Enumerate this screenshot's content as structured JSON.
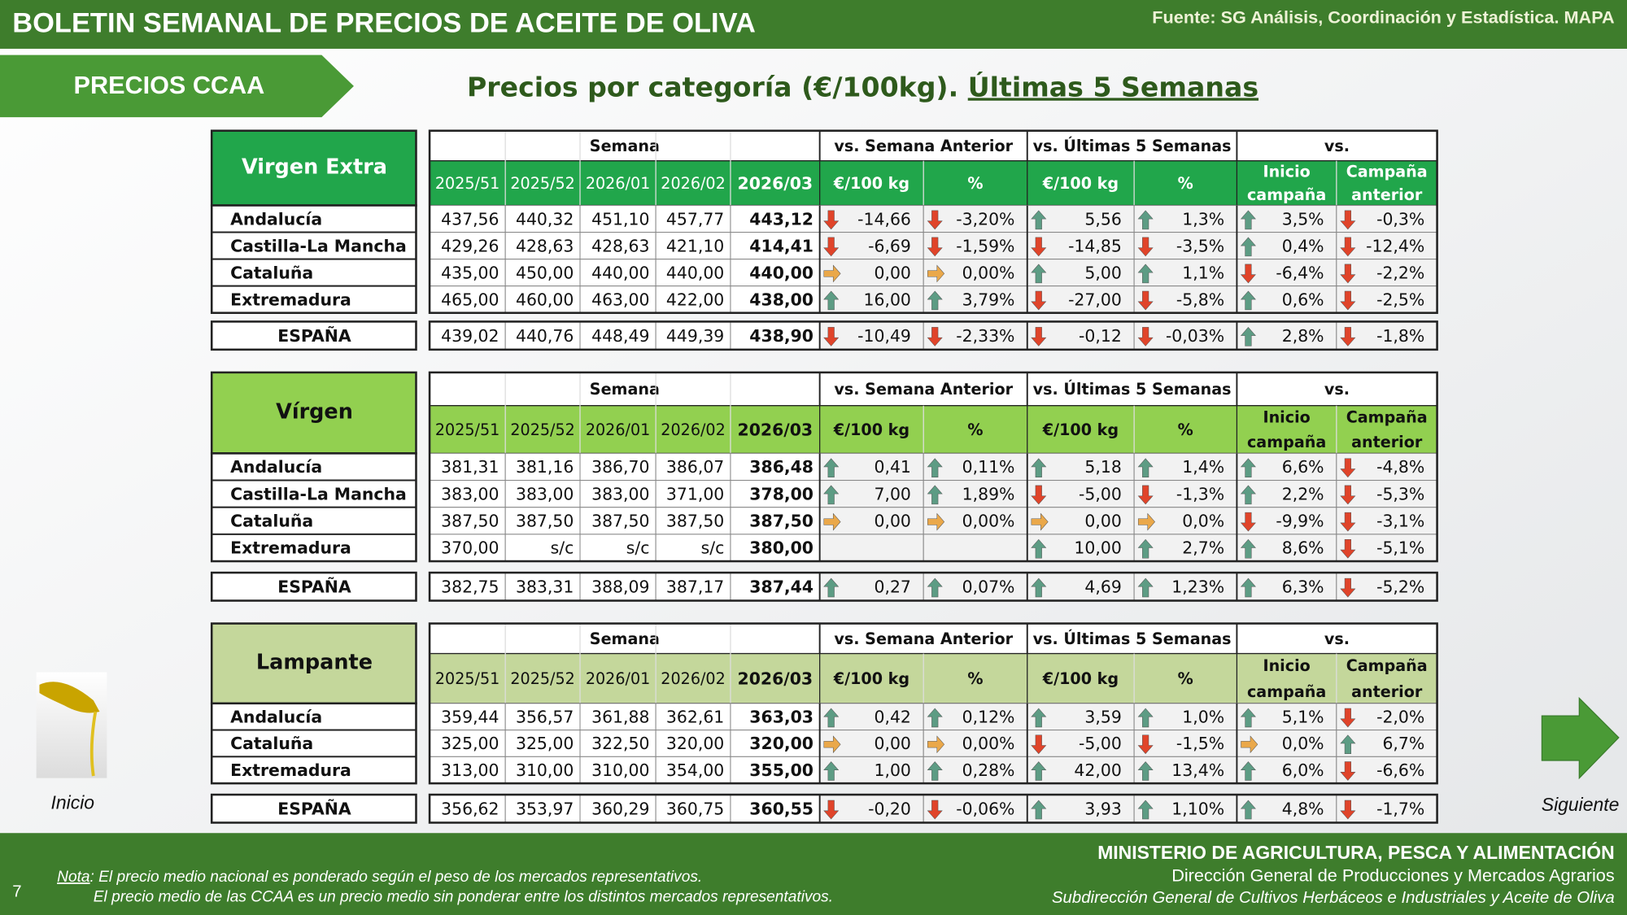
{
  "header": {
    "title": "BOLETIN SEMANAL DE PRECIOS DE ACEITE DE OLIVA",
    "source": "Fuente: SG Análisis, Coordinación y Estadística. MAPA"
  },
  "section": "PRECIOS CCAA",
  "subtitle": {
    "main": "Precios por categoría (€/100kg). ",
    "underlined": "Últimas 5 Semanas"
  },
  "tables": [
    {
      "name": "Virgen Extra",
      "groups": [
        "Semana",
        "vs. Semana Anterior",
        "vs. Últimas 5 Semanas",
        "vs."
      ],
      "columns": [
        "2025/51",
        "2025/52",
        "2026/01",
        "2026/02",
        "2026/03",
        "€/100 kg",
        "%",
        "€/100 kg",
        "%"
      ],
      "col_inicio": [
        "Inicio",
        "campaña"
      ],
      "col_campana": [
        "Campaña",
        "anterior"
      ],
      "rows": [
        {
          "region": "Andalucía",
          "cells": [
            "437,56",
            "440,32",
            "451,10",
            "457,77",
            "443,12",
            "-14,66",
            "-3,20%",
            "5,56",
            "1,3%",
            "3,5%",
            "-0,3%"
          ]
        },
        {
          "region": "Castilla-La Mancha",
          "cells": [
            "429,26",
            "428,63",
            "428,63",
            "421,10",
            "414,41",
            "-6,69",
            "-1,59%",
            "-14,85",
            "-3,5%",
            "0,4%",
            "-12,4%"
          ]
        },
        {
          "region": "Cataluña",
          "cells": [
            "435,00",
            "450,00",
            "440,00",
            "440,00",
            "440,00",
            "0,00",
            "0,00%",
            "5,00",
            "1,1%",
            "-6,4%",
            "-2,2%"
          ]
        },
        {
          "region": "Extremadura",
          "cells": [
            "465,00",
            "460,00",
            "463,00",
            "422,00",
            "438,00",
            "16,00",
            "3,79%",
            "-27,00",
            "-5,8%",
            "0,6%",
            "-2,5%"
          ]
        }
      ],
      "total": {
        "region": "ESPAÑA",
        "cells": [
          "439,02",
          "440,76",
          "448,49",
          "449,39",
          "438,90",
          "-10,49",
          "-2,33%",
          "-0,12",
          "-0,03%",
          "2,8%",
          "-1,8%"
        ]
      }
    },
    {
      "name": "Vírgen",
      "groups": [
        "Semana",
        "vs. Semana Anterior",
        "vs. Últimas 5 Semanas",
        "vs."
      ],
      "columns": [
        "2025/51",
        "2025/52",
        "2026/01",
        "2026/02",
        "2026/03",
        "€/100 kg",
        "%",
        "€/100 kg",
        "%"
      ],
      "col_inicio": [
        "Inicio",
        "campaña"
      ],
      "col_campana": [
        "Campaña",
        "anterior"
      ],
      "rows": [
        {
          "region": "Andalucía",
          "cells": [
            "381,31",
            "381,16",
            "386,70",
            "386,07",
            "386,48",
            "0,41",
            "0,11%",
            "5,18",
            "1,4%",
            "6,6%",
            "-4,8%"
          ]
        },
        {
          "region": "Castilla-La Mancha",
          "cells": [
            "383,00",
            "383,00",
            "383,00",
            "371,00",
            "378,00",
            "7,00",
            "1,89%",
            "-5,00",
            "-1,3%",
            "2,2%",
            "-5,3%"
          ]
        },
        {
          "region": "Cataluña",
          "cells": [
            "387,50",
            "387,50",
            "387,50",
            "387,50",
            "387,50",
            "0,00",
            "0,00%",
            "0,00",
            "0,0%",
            "-9,9%",
            "-3,1%"
          ]
        },
        {
          "region": "Extremadura",
          "cells": [
            "370,00",
            "s/c",
            "s/c",
            "s/c",
            "380,00",
            null,
            null,
            "10,00",
            "2,7%",
            "8,6%",
            "-5,1%"
          ]
        }
      ],
      "total": {
        "region": "ESPAÑA",
        "cells": [
          "382,75",
          "383,31",
          "388,09",
          "387,17",
          "387,44",
          "0,27",
          "0,07%",
          "4,69",
          "1,23%",
          "6,3%",
          "-5,2%"
        ]
      }
    },
    {
      "name": "Lampante",
      "groups": [
        "Semana",
        "vs. Semana Anterior",
        "vs. Últimas 5 Semanas",
        "vs."
      ],
      "columns": [
        "2025/51",
        "2025/52",
        "2026/01",
        "2026/02",
        "2026/03",
        "€/100 kg",
        "%",
        "€/100 kg",
        "%"
      ],
      "col_inicio": [
        "Inicio",
        "campaña"
      ],
      "col_campana": [
        "Campaña",
        "anterior"
      ],
      "rows": [
        {
          "region": "Andalucía",
          "cells": [
            "359,44",
            "356,57",
            "361,88",
            "362,61",
            "363,03",
            "0,42",
            "0,12%",
            "3,59",
            "1,0%",
            "5,1%",
            "-2,0%"
          ]
        },
        {
          "region": "Cataluña",
          "cells": [
            "325,00",
            "325,00",
            "322,50",
            "320,00",
            "320,00",
            "0,00",
            "0,00%",
            "-5,00",
            "-1,5%",
            "0,0%",
            "6,7%"
          ]
        },
        {
          "region": "Extremadura",
          "cells": [
            "313,00",
            "310,00",
            "310,00",
            "354,00",
            "355,00",
            "1,00",
            "0,28%",
            "42,00",
            "13,4%",
            "6,0%",
            "-6,6%"
          ]
        }
      ],
      "total": {
        "region": "ESPAÑA",
        "cells": [
          "356,62",
          "353,97",
          "360,29",
          "360,75",
          "360,55",
          "-0,20",
          "-0,06%",
          "3,93",
          "1,10%",
          "4,8%",
          "-1,7%"
        ]
      }
    }
  ],
  "nav": {
    "home": "Inicio",
    "next": "Siguiente"
  },
  "footer": {
    "page": "7",
    "note_label": "Nota",
    "note_lines": [
      ": El precio medio nacional es ponderado según el peso de los mercados representativos.",
      "El precio medio de las CCAA es un precio medio sin ponderar entre los distintos mercados representativos."
    ],
    "ministry": "MINISTERIO DE AGRICULTURA, PESCA Y ALIMENTACIÓN",
    "direction": "Dirección General de Producciones y Mercados Agrarios",
    "subdirection": "Subdirección General de Cultivos Herbáceos e Industriales y Aceite de Oliva"
  }
}
